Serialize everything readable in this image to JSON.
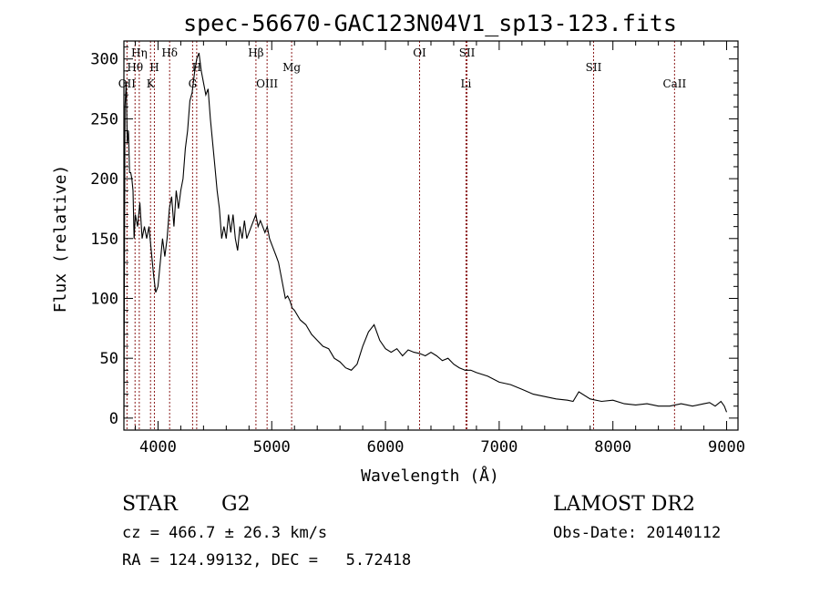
{
  "chart_data": {
    "type": "line",
    "title": "spec-56670-GAC123N04V1_sp13-123.fits",
    "xlabel": "Wavelength (Å)",
    "ylabel": "Flux (relative)",
    "xlim": [
      3700,
      9100
    ],
    "ylim": [
      -10,
      315
    ],
    "xticks": [
      4000,
      5000,
      6000,
      7000,
      8000,
      9000
    ],
    "yticks": [
      0,
      50,
      100,
      150,
      200,
      250,
      300
    ],
    "grid": false,
    "line_color": "#000000",
    "marker_color": "#8b1a1a",
    "series": [
      {
        "x": [
          3700,
          3710,
          3720,
          3730,
          3740,
          3750,
          3760,
          3770,
          3780,
          3790,
          3800,
          3820,
          3840,
          3860,
          3880,
          3900,
          3920,
          3940,
          3960,
          3980,
          4000,
          4020,
          4040,
          4060,
          4080,
          4100,
          4120,
          4140,
          4160,
          4180,
          4200,
          4220,
          4240,
          4260,
          4280,
          4300,
          4320,
          4340,
          4360,
          4380,
          4400,
          4420,
          4440,
          4460,
          4480,
          4500,
          4520,
          4540,
          4560,
          4580,
          4600,
          4620,
          4640,
          4660,
          4680,
          4700,
          4720,
          4740,
          4760,
          4780,
          4800,
          4820,
          4840,
          4860,
          4880,
          4900,
          4920,
          4940,
          4960,
          4980,
          5000,
          5020,
          5040,
          5060,
          5080,
          5100,
          5120,
          5140,
          5160,
          5180,
          5200,
          5250,
          5300,
          5350,
          5400,
          5450,
          5500,
          5550,
          5600,
          5650,
          5700,
          5750,
          5800,
          5850,
          5900,
          5950,
          6000,
          6050,
          6100,
          6150,
          6200,
          6250,
          6300,
          6350,
          6400,
          6450,
          6500,
          6550,
          6600,
          6650,
          6700,
          6750,
          6800,
          6900,
          7000,
          7100,
          7200,
          7300,
          7400,
          7500,
          7600,
          7650,
          7700,
          7800,
          7900,
          8000,
          8100,
          8200,
          8300,
          8400,
          8500,
          8600,
          8700,
          8800,
          8850,
          8900,
          8950,
          8980,
          9000
        ],
        "y": [
          0,
          260,
          280,
          230,
          240,
          205,
          205,
          200,
          190,
          150,
          170,
          160,
          180,
          150,
          160,
          150,
          160,
          140,
          120,
          105,
          110,
          130,
          150,
          135,
          150,
          175,
          185,
          160,
          190,
          175,
          190,
          200,
          225,
          240,
          265,
          272,
          288,
          300,
          305,
          290,
          280,
          270,
          275,
          250,
          230,
          210,
          190,
          175,
          150,
          160,
          150,
          170,
          155,
          170,
          150,
          140,
          160,
          150,
          165,
          150,
          155,
          160,
          165,
          170,
          160,
          165,
          160,
          155,
          160,
          150,
          145,
          140,
          135,
          130,
          120,
          110,
          100,
          102,
          98,
          92,
          90,
          82,
          78,
          70,
          65,
          60,
          58,
          50,
          47,
          42,
          40,
          45,
          60,
          72,
          78,
          65,
          58,
          55,
          58,
          52,
          57,
          55,
          54,
          52,
          55,
          52,
          48,
          50,
          45,
          42,
          40,
          40,
          38,
          35,
          30,
          28,
          24,
          20,
          18,
          16,
          15,
          14,
          22,
          16,
          14,
          15,
          12,
          11,
          12,
          10,
          10,
          12,
          10,
          12,
          13,
          10,
          14,
          10,
          5
        ]
      }
    ],
    "lines": [
      {
        "label": "OII",
        "wl": 3727,
        "row": 3
      },
      {
        "label": "Hθ",
        "wl": 3798,
        "row": 2
      },
      {
        "label": "Hη",
        "wl": 3835,
        "row": 1
      },
      {
        "label": "H",
        "wl": 3968,
        "row": 2
      },
      {
        "label": "K",
        "wl": 3934,
        "row": 3
      },
      {
        "label": "Hδ",
        "wl": 4102,
        "row": 1
      },
      {
        "label": "H",
        "wl": 4340,
        "row": 2
      },
      {
        "label": "G",
        "wl": 4304,
        "row": 3
      },
      {
        "label": "Hβ",
        "wl": 4861,
        "row": 1
      },
      {
        "label": "OIII",
        "wl": 4959,
        "row": 3
      },
      {
        "label": "Mg",
        "wl": 5175,
        "row": 2
      },
      {
        "label": "OI",
        "wl": 6300,
        "row": 1
      },
      {
        "label": "SII",
        "wl": 6717,
        "row": 1
      },
      {
        "label": "Li",
        "wl": 6708,
        "row": 3
      },
      {
        "label": "SII",
        "wl": 7830,
        "row": 2
      },
      {
        "label": "CaII",
        "wl": 8542,
        "row": 3
      }
    ]
  },
  "footer": {
    "object_type": "STAR",
    "subclass": "G2",
    "survey": "LAMOST DR2",
    "cz": "cz = 466.7 ± 26.3 km/s",
    "obs_date": "Obs-Date: 20140112",
    "coords": "RA = 124.99132, DEC =   5.72418"
  }
}
